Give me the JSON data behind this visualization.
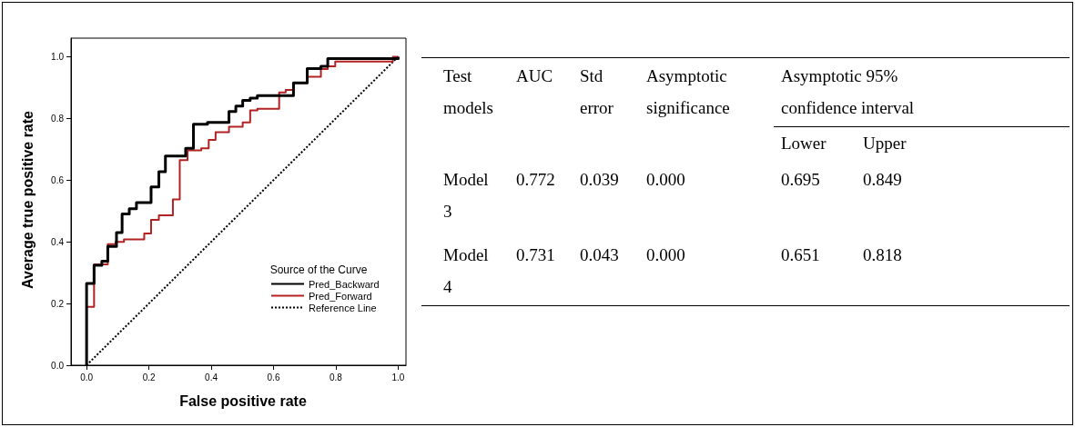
{
  "chart_data": [
    {
      "type": "step",
      "xlabel": "False positive rate",
      "ylabel": "Average true positive rate",
      "legend_title": "Source of the Curve",
      "legend": "bottom right",
      "marker": "none",
      "grid": false,
      "xlim": [
        -0.05,
        1.025
      ],
      "ylim": [
        0,
        1.06
      ],
      "xticks": [
        {
          "value": 0,
          "label": "0.0"
        },
        {
          "value": 0.2,
          "label": "0.2"
        },
        {
          "value": 0.4,
          "label": "0.4"
        },
        {
          "value": 0.6,
          "label": "0.6"
        },
        {
          "value": 0.8,
          "label": "0.8"
        },
        {
          "value": 1,
          "label": "1.0"
        }
      ],
      "yticks": [
        {
          "value": 0,
          "label": "0.0"
        },
        {
          "value": 0.2,
          "label": "0.2"
        },
        {
          "value": 0.4,
          "label": "0.4"
        },
        {
          "value": 0.6,
          "label": "0.6"
        },
        {
          "value": 0.8,
          "label": "0.8"
        },
        {
          "value": 1,
          "label": "1.0"
        }
      ],
      "series": [
        {
          "name": "Pred_Backward",
          "color": "#000000",
          "x": [
            0,
            0,
            0.024,
            0.049,
            0.068,
            0.096,
            0.114,
            0.137,
            0.16,
            0.207,
            0.232,
            0.253,
            0.318,
            0.343,
            0.388,
            0.457,
            0.479,
            0.501,
            0.525,
            0.548,
            0.664,
            0.708,
            0.752,
            0.774,
            1.0
          ],
          "values": [
            0,
            0.265,
            0.324,
            0.337,
            0.385,
            0.43,
            0.49,
            0.507,
            0.527,
            0.578,
            0.627,
            0.678,
            0.703,
            0.781,
            0.787,
            0.822,
            0.84,
            0.858,
            0.866,
            0.874,
            0.915,
            0.961,
            0.969,
            0.994,
            1.0
          ]
        },
        {
          "name": "Pred_Forward",
          "color": "#b22222",
          "x": [
            0,
            0,
            0.024,
            0.068,
            0.093,
            0.12,
            0.185,
            0.207,
            0.232,
            0.277,
            0.299,
            0.324,
            0.368,
            0.392,
            0.414,
            0.457,
            0.501,
            0.525,
            0.548,
            0.618,
            0.639,
            0.664,
            0.708,
            0.752,
            0.774,
            0.798,
            0.983,
            1.0
          ],
          "values": [
            0,
            0.189,
            0.327,
            0.392,
            0.4,
            0.408,
            0.427,
            0.471,
            0.486,
            0.537,
            0.665,
            0.696,
            0.703,
            0.73,
            0.755,
            0.773,
            0.787,
            0.826,
            0.831,
            0.884,
            0.892,
            0.915,
            0.935,
            0.96,
            0.969,
            0.984,
            1.0,
            1.0
          ]
        },
        {
          "name": "Reference Line",
          "type": "line",
          "line_style": "dotted",
          "color": "#000000",
          "x": [
            0,
            1
          ],
          "values": [
            0,
            1
          ]
        }
      ]
    },
    {
      "type": "other",
      "categories": [
        "Test models",
        "AUC",
        "Std error",
        "Asymptotic significance",
        "Lower",
        "Upper"
      ],
      "annotations": [
        "Asymptotic 95% confidence interval"
      ],
      "y_categories": [
        "Model 3",
        "Model 4"
      ],
      "cell_labels": [
        [
          "0.772",
          "0.039",
          "0.000",
          "0.695",
          "0.849"
        ],
        [
          "0.731",
          "0.043",
          "0.000",
          "0.651",
          "0.818"
        ]
      ]
    }
  ]
}
